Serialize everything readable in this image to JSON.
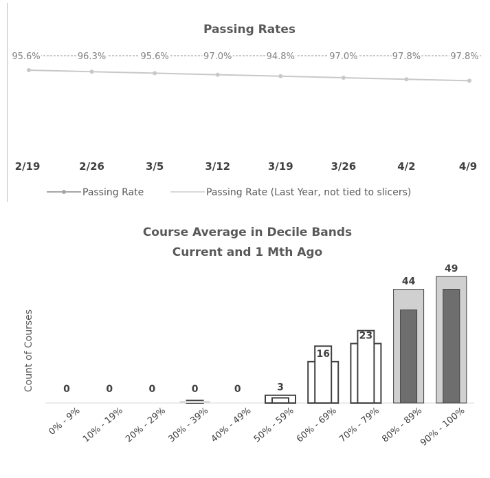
{
  "chart_data": [
    {
      "type": "line",
      "title": "Passing Rates",
      "categories": [
        "2/19",
        "2/26",
        "3/5",
        "3/12",
        "3/19",
        "3/26",
        "4/2",
        "4/9"
      ],
      "series": [
        {
          "name": "Passing Rate",
          "values": [
            95.6,
            96.3,
            95.6,
            97.0,
            94.8,
            97.0,
            97.8,
            97.8
          ],
          "labels": [
            "95.6%",
            "96.3%",
            "95.6%",
            "97.0%",
            "94.8%",
            "97.0%",
            "97.8%",
            "97.8%"
          ],
          "color": "#a6a6a6"
        },
        {
          "name": "Passing Rate (Last Year, not tied to slicers)",
          "values": [
            null,
            null,
            null,
            null,
            null,
            null,
            null,
            null
          ],
          "color": "#d9d9d9"
        }
      ],
      "legend": "bottom"
    },
    {
      "type": "bar",
      "title": "Course Average in Decile Bands",
      "subtitle": "Current and 1 Mth Ago",
      "ylabel": "Count of Courses",
      "categories": [
        "0% - 9%",
        "10% - 19%",
        "20% - 29%",
        "30% - 39%",
        "40% - 49%",
        "50% - 59%",
        "60% - 69%",
        "70% - 79%",
        "80% - 89%",
        "90% - 100%"
      ],
      "series": [
        {
          "name": "Current",
          "values": [
            0,
            0,
            0,
            0,
            0,
            3,
            16,
            23,
            44,
            49
          ]
        },
        {
          "name": "1 Mth Ago",
          "values": [
            0,
            0,
            0,
            1,
            0,
            2,
            22,
            28,
            36,
            44
          ]
        }
      ],
      "data_labels": [
        "0",
        "0",
        "0",
        "0",
        "0",
        "3",
        "16",
        "23",
        "44",
        "49"
      ],
      "ylim": [
        0,
        50
      ],
      "grid": false
    }
  ]
}
